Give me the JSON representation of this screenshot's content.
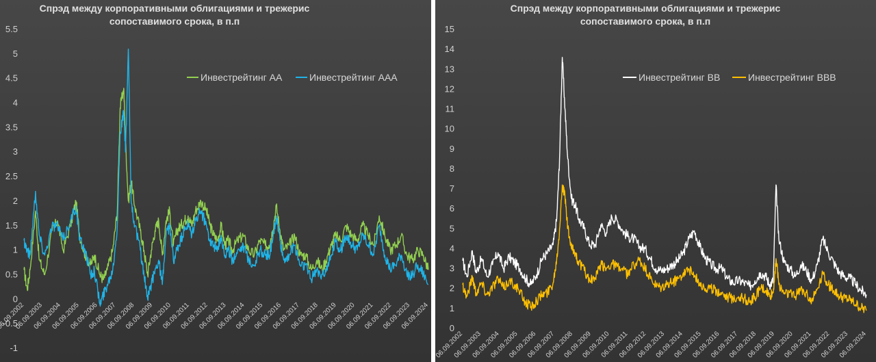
{
  "chart_data": [
    {
      "type": "line",
      "title": "Спрэд между корпоративными облигациями и трежерис сопоставимого срока, в п.п",
      "title_lines": [
        "Спрэд между корпоративными облигациями и трежерис",
        "сопоставимого срока, в п.п"
      ],
      "ylim": [
        -1,
        5.5
      ],
      "yticks": [
        "-1",
        "-0.5",
        "0",
        "0.5",
        "1",
        "1.5",
        "2",
        "2.5",
        "3",
        "3.5",
        "4",
        "4.5",
        "5",
        "5.5"
      ],
      "xticks": [
        "06.09.2002",
        "06.09.2003",
        "06.09.2004",
        "06.09.2005",
        "06.09.2006",
        "06.09.2007",
        "06.09.2008",
        "06.09.2009",
        "06.09.2010",
        "06.09.2011",
        "06.09.2012",
        "06.09.2013",
        "06.09.2014",
        "06.09.2015",
        "06.09.2016",
        "06.09.2017",
        "06.09.2018",
        "06.09.2019",
        "06.09.2020",
        "06.09.2021",
        "06.09.2022",
        "06.09.2023",
        "06.09.2024"
      ],
      "legend_position": "top-right",
      "grid": false,
      "series": [
        {
          "name": "Инвестрейтинг АА",
          "color": "#92d050",
          "x": [
            2002.67,
            2002.85,
            2003.0,
            2003.3,
            2003.5,
            2003.8,
            2004.2,
            2004.5,
            2004.8,
            2005.2,
            2005.5,
            2005.7,
            2006.0,
            2006.3,
            2006.5,
            2006.8,
            2007.0,
            2007.2,
            2007.5,
            2007.75,
            2007.9,
            2008.1,
            2008.2,
            2008.35,
            2008.5,
            2008.7,
            2009.0,
            2009.2,
            2009.4,
            2009.6,
            2009.8,
            2010.0,
            2010.2,
            2010.4,
            2010.6,
            2010.8,
            2011.0,
            2011.2,
            2011.4,
            2011.6,
            2011.8,
            2012.0,
            2012.3,
            2012.6,
            2012.8,
            2013.0,
            2013.2,
            2013.4,
            2013.6,
            2013.8,
            2014.0,
            2014.3,
            2014.6,
            2014.9,
            2015.2,
            2015.5,
            2015.8,
            2016.0,
            2016.2,
            2016.4,
            2016.6,
            2016.8,
            2017.1,
            2017.4,
            2017.7,
            2018.0,
            2018.3,
            2018.6,
            2018.9,
            2019.2,
            2019.4,
            2019.6,
            2019.9,
            2020.2,
            2020.5,
            2020.8,
            2021.1,
            2021.4,
            2021.7,
            2022.0,
            2022.3,
            2022.6,
            2022.9,
            2023.2,
            2023.5,
            2023.8,
            2024.1,
            2024.4,
            2024.67
          ],
          "values": [
            0.6,
            0.2,
            0.6,
            1.8,
            0.8,
            0.5,
            1.4,
            1.6,
            1.0,
            1.5,
            2.0,
            1.3,
            0.9,
            0.7,
            0.9,
            0.5,
            0.4,
            0.6,
            1.0,
            1.8,
            3.9,
            4.3,
            3.2,
            2.0,
            2.4,
            1.9,
            1.4,
            1.0,
            0.5,
            1.0,
            1.4,
            1.6,
            0.9,
            1.6,
            1.8,
            1.1,
            1.4,
            1.5,
            1.6,
            1.7,
            1.5,
            1.8,
            2.0,
            1.8,
            1.5,
            1.3,
            1.2,
            1.5,
            1.1,
            1.2,
            1.0,
            1.2,
            1.3,
            1.0,
            0.9,
            1.2,
            1.1,
            1.1,
            1.4,
            1.9,
            1.4,
            1.0,
            1.1,
            1.3,
            0.9,
            0.9,
            0.6,
            0.8,
            0.6,
            0.9,
            1.1,
            1.3,
            1.2,
            1.5,
            1.3,
            1.2,
            1.5,
            1.3,
            1.1,
            1.7,
            1.3,
            1.0,
            1.1,
            1.3,
            0.9,
            0.8,
            1.0,
            0.9,
            0.6
          ]
        },
        {
          "name": "Инвестрейтинг ААА",
          "color": "#1fb4e8",
          "x": [
            2002.67,
            2002.85,
            2003.0,
            2003.3,
            2003.5,
            2003.8,
            2004.2,
            2004.5,
            2004.8,
            2005.2,
            2005.5,
            2005.7,
            2006.0,
            2006.3,
            2006.5,
            2006.8,
            2007.0,
            2007.2,
            2007.5,
            2007.75,
            2007.9,
            2008.1,
            2008.2,
            2008.35,
            2008.5,
            2008.7,
            2009.0,
            2009.2,
            2009.4,
            2009.6,
            2009.8,
            2010.0,
            2010.2,
            2010.4,
            2010.6,
            2010.8,
            2011.0,
            2011.2,
            2011.4,
            2011.6,
            2011.8,
            2012.0,
            2012.3,
            2012.6,
            2012.8,
            2013.0,
            2013.2,
            2013.4,
            2013.6,
            2013.8,
            2014.0,
            2014.3,
            2014.6,
            2014.9,
            2015.2,
            2015.5,
            2015.8,
            2016.0,
            2016.2,
            2016.4,
            2016.6,
            2016.8,
            2017.1,
            2017.4,
            2017.7,
            2018.0,
            2018.3,
            2018.6,
            2018.9,
            2019.2,
            2019.4,
            2019.6,
            2019.9,
            2020.2,
            2020.5,
            2020.8,
            2021.1,
            2021.4,
            2021.7,
            2022.0,
            2022.3,
            2022.6,
            2022.9,
            2023.2,
            2023.5,
            2023.8,
            2024.1,
            2024.4,
            2024.67
          ],
          "values": [
            1.2,
            1.0,
            0.9,
            2.2,
            1.3,
            0.9,
            1.5,
            1.5,
            1.2,
            1.6,
            1.9,
            1.2,
            1.0,
            0.5,
            0.6,
            -0.1,
            0.1,
            0.3,
            0.6,
            1.5,
            3.4,
            3.8,
            3.0,
            5.1,
            2.0,
            1.5,
            1.0,
            0.5,
            0.0,
            0.3,
            0.6,
            0.8,
            0.3,
            1.3,
            1.5,
            0.8,
            1.0,
            1.2,
            1.4,
            1.5,
            1.3,
            1.6,
            1.8,
            1.5,
            1.2,
            1.1,
            1.0,
            1.3,
            0.9,
            1.0,
            0.8,
            1.0,
            1.1,
            0.8,
            0.7,
            1.0,
            0.9,
            0.9,
            1.2,
            1.7,
            1.2,
            0.8,
            0.9,
            1.1,
            0.7,
            0.7,
            0.4,
            0.6,
            0.5,
            0.7,
            0.9,
            1.2,
            1.0,
            1.3,
            1.1,
            1.0,
            1.3,
            1.1,
            0.9,
            1.5,
            0.9,
            0.6,
            0.7,
            0.9,
            0.5,
            0.5,
            0.7,
            0.5,
            0.3
          ]
        }
      ]
    },
    {
      "type": "line",
      "title": "Спрэд между корпоративными облигациями и трежерис сопоставимого срока, в п.п",
      "title_lines": [
        "Спрэд между корпоративными облигациями и трежерис",
        "сопоставимого срока, в п.п"
      ],
      "ylim": [
        0,
        15
      ],
      "yticks": [
        "0",
        "1",
        "2",
        "3",
        "4",
        "5",
        "6",
        "7",
        "8",
        "9",
        "10",
        "11",
        "12",
        "13",
        "14",
        "15"
      ],
      "xticks": [
        "06.09.2002",
        "06.09.2003",
        "06.09.2004",
        "06.09.2005",
        "06.09.2006",
        "06.09.2007",
        "06.09.2008",
        "06.09.2009",
        "06.09.2010",
        "06.09.2011",
        "06.09.2012",
        "06.09.2013",
        "06.09.2014",
        "06.09.2015",
        "06.09.2016",
        "06.09.2017",
        "06.09.2018",
        "06.09.2019",
        "06.09.2020",
        "06.09.2021",
        "06.09.2022",
        "06.09.2023",
        "06.09.2024"
      ],
      "legend_position": "top-right",
      "grid": false,
      "series": [
        {
          "name": "Инвестрейтинг ВВ",
          "color": "#ffffff",
          "x": [
            2002.67,
            2002.9,
            2003.2,
            2003.4,
            2003.7,
            2004.0,
            2004.3,
            2004.6,
            2004.9,
            2005.2,
            2005.5,
            2005.8,
            2006.1,
            2006.4,
            2006.7,
            2007.0,
            2007.3,
            2007.6,
            2007.8,
            2007.95,
            2008.1,
            2008.25,
            2008.4,
            2008.6,
            2008.8,
            2009.0,
            2009.3,
            2009.6,
            2009.9,
            2010.2,
            2010.5,
            2010.8,
            2011.1,
            2011.4,
            2011.7,
            2012.0,
            2012.3,
            2012.6,
            2012.9,
            2013.2,
            2013.5,
            2013.8,
            2014.1,
            2014.4,
            2014.7,
            2015.0,
            2015.3,
            2015.6,
            2015.9,
            2016.2,
            2016.5,
            2016.8,
            2017.1,
            2017.4,
            2017.7,
            2018.0,
            2018.3,
            2018.6,
            2018.9,
            2019.2,
            2019.4,
            2019.6,
            2019.75,
            2019.9,
            2020.2,
            2020.5,
            2020.8,
            2021.1,
            2021.4,
            2021.7,
            2022.0,
            2022.3,
            2022.6,
            2022.9,
            2023.2,
            2023.5,
            2023.8,
            2024.1,
            2024.4,
            2024.67
          ],
          "values": [
            3.4,
            2.6,
            3.9,
            2.8,
            3.5,
            2.6,
            3.2,
            3.8,
            3.0,
            3.6,
            3.3,
            3.0,
            2.5,
            2.2,
            2.7,
            3.5,
            3.8,
            4.2,
            5.5,
            8.5,
            13.6,
            11.0,
            8.5,
            6.5,
            6.2,
            5.5,
            5.0,
            4.2,
            4.2,
            5.2,
            4.8,
            5.6,
            5.4,
            4.9,
            4.6,
            4.5,
            4.1,
            4.0,
            3.5,
            3.0,
            2.9,
            3.0,
            3.2,
            3.4,
            3.8,
            4.5,
            4.9,
            4.1,
            3.5,
            3.2,
            3.0,
            3.0,
            2.5,
            2.3,
            2.4,
            2.3,
            2.1,
            2.4,
            2.8,
            2.6,
            2.2,
            2.4,
            7.2,
            4.5,
            3.3,
            3.0,
            2.6,
            3.2,
            2.9,
            2.4,
            3.2,
            4.5,
            3.8,
            3.3,
            2.8,
            2.6,
            2.5,
            2.2,
            1.9,
            1.7
          ]
        },
        {
          "name": "Инвестрейтинг ВВВ",
          "color": "#ffc000",
          "x": [
            2002.67,
            2002.9,
            2003.2,
            2003.4,
            2003.7,
            2004.0,
            2004.3,
            2004.6,
            2004.9,
            2005.2,
            2005.5,
            2005.8,
            2006.1,
            2006.4,
            2006.7,
            2007.0,
            2007.3,
            2007.6,
            2007.8,
            2007.95,
            2008.1,
            2008.25,
            2008.4,
            2008.6,
            2008.8,
            2009.0,
            2009.3,
            2009.6,
            2009.9,
            2010.2,
            2010.5,
            2010.8,
            2011.1,
            2011.4,
            2011.7,
            2012.0,
            2012.3,
            2012.6,
            2012.9,
            2013.2,
            2013.5,
            2013.8,
            2014.1,
            2014.4,
            2014.7,
            2015.0,
            2015.3,
            2015.6,
            2015.9,
            2016.2,
            2016.5,
            2016.8,
            2017.1,
            2017.4,
            2017.7,
            2018.0,
            2018.3,
            2018.6,
            2018.9,
            2019.2,
            2019.4,
            2019.6,
            2019.75,
            2019.9,
            2020.2,
            2020.5,
            2020.8,
            2021.1,
            2021.4,
            2021.7,
            2022.0,
            2022.3,
            2022.6,
            2022.9,
            2023.2,
            2023.5,
            2023.8,
            2024.1,
            2024.4,
            2024.67
          ],
          "values": [
            2.2,
            1.6,
            2.6,
            1.8,
            2.3,
            1.7,
            2.1,
            2.5,
            2.0,
            2.4,
            2.2,
            1.8,
            1.3,
            1.1,
            1.4,
            1.7,
            1.8,
            2.3,
            3.5,
            5.0,
            7.2,
            6.6,
            5.0,
            4.0,
            3.8,
            3.3,
            2.9,
            2.4,
            2.5,
            3.2,
            3.0,
            3.3,
            3.1,
            2.9,
            2.7,
            3.2,
            3.4,
            3.0,
            2.5,
            2.1,
            2.0,
            2.2,
            2.3,
            2.5,
            2.8,
            3.0,
            2.6,
            2.3,
            2.0,
            2.0,
            1.9,
            1.8,
            1.6,
            1.5,
            1.6,
            1.5,
            1.3,
            1.6,
            2.0,
            1.9,
            1.6,
            1.8,
            3.5,
            2.2,
            1.8,
            1.8,
            1.6,
            2.0,
            1.8,
            1.4,
            2.0,
            2.8,
            2.2,
            1.9,
            1.6,
            1.5,
            1.4,
            1.2,
            1.0,
            0.9
          ]
        }
      ]
    }
  ]
}
